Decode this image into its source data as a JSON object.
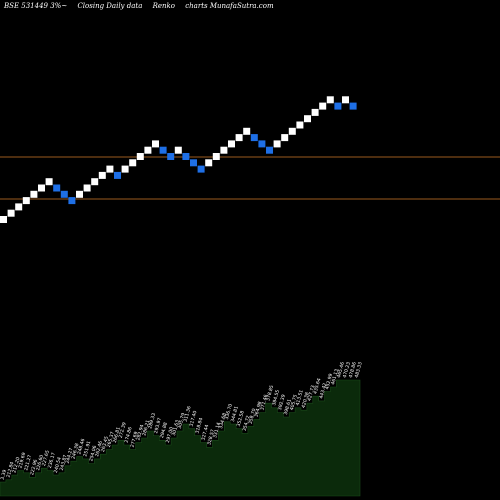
{
  "header": {
    "symbol": "BSE 531449 3%~",
    "caption": "Closing Daily data",
    "chart_name": "Renko",
    "site": "charts MunafaSutra.com"
  },
  "colors": {
    "background": "#000000",
    "up_brick": "#ffffff",
    "down_brick": "#1e6fe6",
    "reference_line": "#9a5a1e",
    "volume_fill": "#0b2a0b",
    "volume_line": "#1a4a1a",
    "label": "#ffffff"
  },
  "chart_data": {
    "type": "bar",
    "renko": {
      "brick_direction": [
        "up",
        "up",
        "up",
        "up",
        "up",
        "up",
        "up",
        "down",
        "down",
        "down",
        "up",
        "up",
        "up",
        "up",
        "up",
        "down",
        "up",
        "up",
        "up",
        "up",
        "up",
        "down",
        "down",
        "up",
        "down",
        "down",
        "down",
        "up",
        "up",
        "up",
        "up",
        "up",
        "up",
        "down",
        "down",
        "down",
        "up",
        "up",
        "up",
        "up",
        "up",
        "up",
        "up",
        "up",
        "down",
        "up",
        "down"
      ]
    },
    "reference_lines": 2,
    "volume_labels": [
      "3.39",
      "212.84",
      "212.20",
      "219.69",
      "221.27",
      "222.96",
      "226.60",
      "227.65",
      "236.17",
      "240.54",
      "243.87",
      "244.27",
      "246.38",
      "248.46",
      "251.91",
      "254.06",
      "262.46",
      "263.45",
      "265.37",
      "266.81",
      "272.39",
      "274.86",
      "277.69",
      "282.94",
      "286.21",
      "289.33",
      "293.97",
      "294.88",
      "297.00",
      "301.63",
      "305.79",
      "311.36",
      "317.40",
      "318.84",
      "327.44",
      "328.57",
      "331.14",
      "334.68",
      "336.70",
      "344.81",
      "352.58",
      "354.72",
      "358.70",
      "364.98",
      "371.46",
      "378.85",
      "384.55",
      "392.39",
      "398.61",
      "405.75",
      "413.51",
      "420.38",
      "427.73",
      "435.64",
      "443.42",
      "452.99",
      "461.13",
      "465.46",
      "470.23",
      "478.86",
      "483.33"
    ],
    "volume_levels": [
      0.12,
      0.14,
      0.18,
      0.22,
      0.2,
      0.16,
      0.2,
      0.24,
      0.22,
      0.18,
      0.2,
      0.26,
      0.3,
      0.34,
      0.32,
      0.28,
      0.32,
      0.36,
      0.4,
      0.44,
      0.48,
      0.44,
      0.4,
      0.46,
      0.5,
      0.56,
      0.52,
      0.48,
      0.44,
      0.5,
      0.56,
      0.62,
      0.58,
      0.52,
      0.46,
      0.42,
      0.48,
      0.56,
      0.64,
      0.62,
      0.58,
      0.54,
      0.6,
      0.66,
      0.72,
      0.8,
      0.76,
      0.72,
      0.68,
      0.72,
      0.76,
      0.74,
      0.8,
      0.86,
      0.82,
      0.9,
      0.94,
      1.0,
      1.0,
      1.0,
      1.0
    ]
  }
}
